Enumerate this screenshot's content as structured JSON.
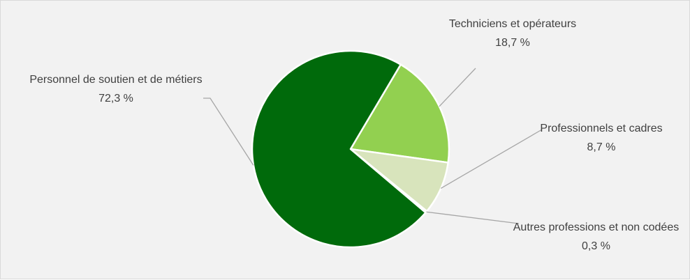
{
  "chart_data": {
    "type": "pie",
    "categories": [
      "Techniciens et opérateurs",
      "Professionnels et cadres",
      "Autres professions et non codées",
      "Personnel de soutien et de métiers"
    ],
    "values": [
      18.7,
      8.7,
      0.3,
      72.3
    ],
    "value_labels": [
      "18,7 %",
      "8,7 %",
      "0,3 %",
      "72,3 %"
    ],
    "colors": [
      "#92d050",
      "#d8e4bc",
      "#c4d79b",
      "#006a0b"
    ]
  }
}
